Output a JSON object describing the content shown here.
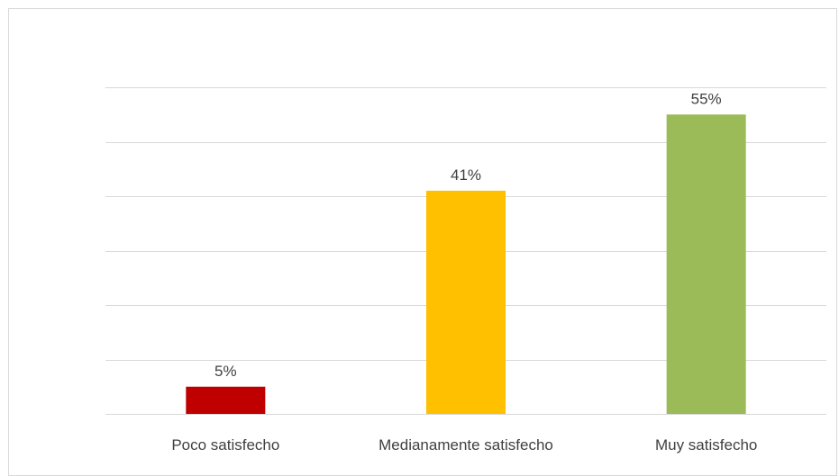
{
  "chart_data": {
    "type": "bar",
    "title": "",
    "xlabel": "",
    "ylabel": "",
    "categories": [
      "Poco satisfecho",
      "Medianamente satisfecho",
      "Muy satisfecho"
    ],
    "values": [
      5,
      41,
      55
    ],
    "value_labels": [
      "5%",
      "41%",
      "55%"
    ],
    "colors": [
      "#c00000",
      "#ffc000",
      "#9bbb59"
    ],
    "ylim": [
      0,
      60
    ],
    "y_major_step": 10,
    "grid": true,
    "y_axis_labels_visible": false,
    "legend": "none"
  }
}
